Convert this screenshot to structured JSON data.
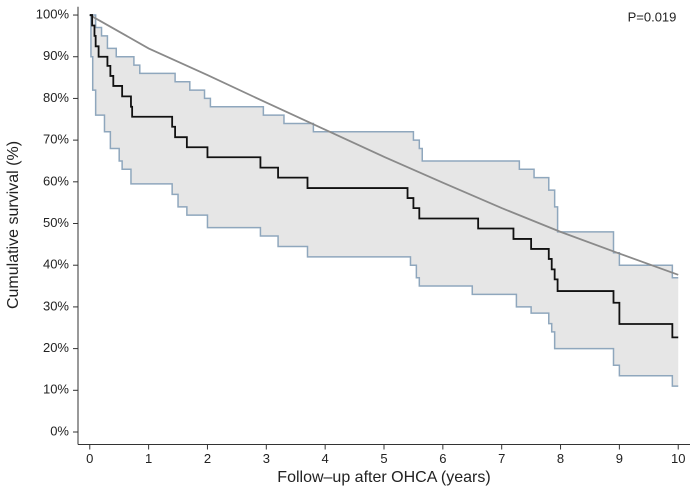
{
  "chart_data": {
    "type": "line",
    "drawstyle": "steps-post",
    "x_label": "Follow–up after OHCA (years)",
    "y_label": "Cumulative survival (%)",
    "annotation": "P=0.019",
    "ci_fill": "#e6e6e6",
    "xlim": [
      -0.2,
      10.2
    ],
    "ylim": [
      -3,
      102
    ],
    "xticks": [
      0,
      1,
      2,
      3,
      4,
      5,
      6,
      7,
      8,
      9,
      10
    ],
    "yticks": [
      {
        "value": 0,
        "label": "0%"
      },
      {
        "value": 10,
        "label": "10%"
      },
      {
        "value": 20,
        "label": "20%"
      },
      {
        "value": 30,
        "label": "30%"
      },
      {
        "value": 40,
        "label": "40%"
      },
      {
        "value": 50,
        "label": "50%"
      },
      {
        "value": 60,
        "label": "60%"
      },
      {
        "value": 70,
        "label": "70%"
      },
      {
        "value": 80,
        "label": "80%"
      },
      {
        "value": 90,
        "label": "90%"
      },
      {
        "value": 100,
        "label": "100%"
      }
    ],
    "ci_upper": {
      "color": "#8fa7bd",
      "x": [
        0,
        0.1,
        0.2,
        0.3,
        0.45,
        0.75,
        0.85,
        1.45,
        1.7,
        1.95,
        2.05,
        2.95,
        3.3,
        3.8,
        5.5,
        5.6,
        5.65,
        7.3,
        7.55,
        7.8,
        7.9,
        7.95,
        8.9,
        9.0,
        9.9,
        10
      ],
      "values": [
        100,
        97,
        95,
        92,
        90,
        88,
        86,
        84,
        82,
        80,
        78,
        76,
        74,
        72,
        70,
        68,
        65,
        63,
        61,
        58,
        54,
        48,
        43,
        40,
        37,
        37
      ]
    },
    "ci_lower": {
      "color": "#8fa7bd",
      "x": [
        0,
        0.02,
        0.05,
        0.1,
        0.25,
        0.35,
        0.5,
        0.55,
        0.7,
        1.4,
        1.5,
        1.65,
        2.0,
        2.9,
        3.2,
        3.7,
        5.45,
        5.55,
        5.6,
        6.5,
        7.25,
        7.5,
        7.8,
        7.85,
        7.9,
        8.9,
        9.0,
        9.9,
        10
      ],
      "values": [
        100,
        90,
        82,
        76,
        72,
        68,
        65,
        63,
        59.5,
        57,
        54,
        52,
        49,
        47,
        44.5,
        42,
        40,
        37,
        35,
        33,
        30,
        28.5,
        26,
        24,
        20,
        16,
        13.5,
        11,
        11
      ]
    },
    "km": {
      "color": "#111111",
      "x": [
        0,
        0.04,
        0.08,
        0.1,
        0.15,
        0.3,
        0.35,
        0.4,
        0.55,
        0.7,
        0.72,
        1.4,
        1.45,
        1.65,
        2.0,
        2.9,
        3.2,
        3.7,
        5.4,
        5.5,
        5.6,
        6.6,
        7.2,
        7.5,
        7.8,
        7.85,
        7.9,
        7.95,
        8.9,
        9.0,
        9.9,
        10
      ],
      "values": [
        100,
        97.5,
        95,
        92.5,
        90,
        87.8,
        85.4,
        83,
        80.5,
        78,
        75.6,
        73.2,
        70.7,
        68.3,
        65.9,
        63.4,
        61,
        58.5,
        56.1,
        53.7,
        51.2,
        48.8,
        46.3,
        43.9,
        41.5,
        39,
        36.6,
        33.8,
        31,
        25.9,
        22.7,
        22.7
      ]
    },
    "expected": {
      "color": "#8a8a8a",
      "x": [
        0,
        1,
        2,
        3,
        4,
        5,
        6,
        7,
        8,
        9,
        10
      ],
      "values": [
        100,
        92,
        85.6,
        79,
        72.5,
        66,
        59.8,
        53.7,
        48,
        42.8,
        37.7
      ]
    }
  }
}
